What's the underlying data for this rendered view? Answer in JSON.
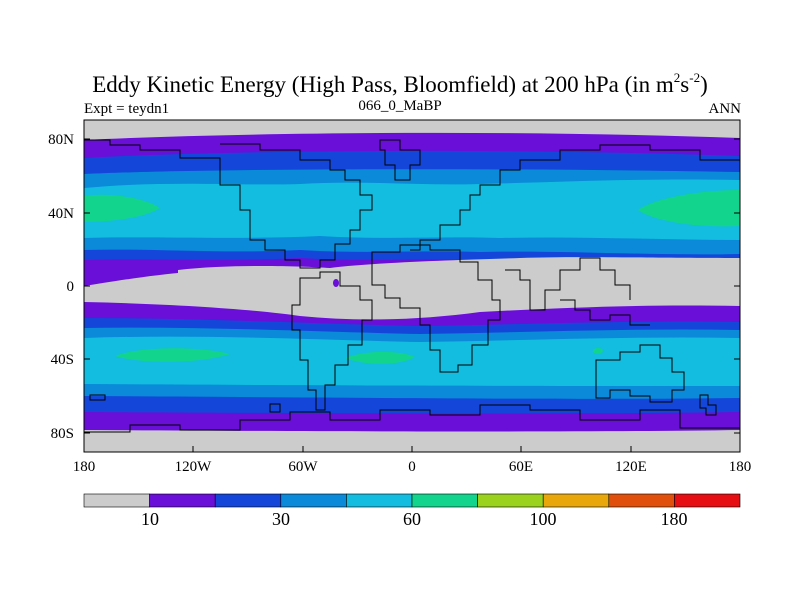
{
  "title": {
    "main": "Eddy Kinetic Energy (High Pass, Bloomfield) at 200 hPa (in m",
    "sup1": "2",
    "mid": "s",
    "sup2": "-2",
    "end": ")"
  },
  "subtitle": {
    "left": "Expt = teydn1",
    "center": "066_0_MaBP",
    "right": "ANN"
  },
  "axes": {
    "y_ticks": [
      "80N",
      "40N",
      "0",
      "40S",
      "80S"
    ],
    "x_ticks": [
      "180",
      "120W",
      "60W",
      "0",
      "60E",
      "120E",
      "180"
    ]
  },
  "colorbar": {
    "colors": [
      "#cccccc",
      "#6a0fd8",
      "#1446d9",
      "#0a8ad8",
      "#12bde0",
      "#12d48c",
      "#9ad21e",
      "#e8a80c",
      "#e0500c",
      "#e60e12"
    ],
    "labels": [
      "10",
      "30",
      "60",
      "100",
      "180"
    ]
  },
  "map_colors": {
    "gray": "#cccccc",
    "violet": "#6a0fd8",
    "blue": "#1446d9",
    "medblue": "#0a8ad8",
    "cyan": "#12bde0",
    "green": "#12d48c"
  }
}
